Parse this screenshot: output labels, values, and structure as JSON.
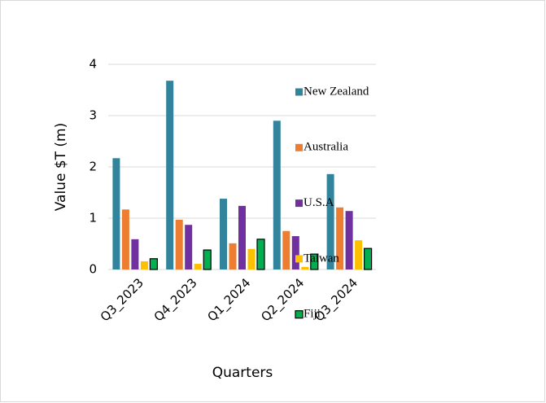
{
  "chart_data": {
    "type": "bar",
    "x_label": "Quarters",
    "y_label": "Value $T (m)",
    "categories": [
      "Q3_2023",
      "Q4_2023",
      "Q1_2024",
      "Q2_2024",
      "Q3_2024"
    ],
    "series": [
      {
        "name": "New Zealand",
        "color": "#31849b",
        "values": [
          2.17,
          3.68,
          1.38,
          2.9,
          1.86
        ]
      },
      {
        "name": "Australia",
        "color": "#ed7d31",
        "values": [
          1.17,
          0.97,
          0.51,
          0.75,
          1.21
        ]
      },
      {
        "name": "U.S.A",
        "color": "#7030a0",
        "values": [
          0.59,
          0.87,
          1.24,
          0.65,
          1.14
        ]
      },
      {
        "name": "Taiwan",
        "color": "#ffc000",
        "values": [
          0.16,
          0.11,
          0.4,
          0.05,
          0.57
        ]
      },
      {
        "name": "Fiji",
        "color": "#00b050",
        "edgecolor": "#000000",
        "values": [
          0.21,
          0.38,
          0.59,
          0.3,
          0.41
        ]
      }
    ],
    "ylim": [
      0,
      4
    ],
    "yticks": [
      0,
      1,
      2,
      3,
      4
    ],
    "grid": true,
    "legend": "right"
  }
}
